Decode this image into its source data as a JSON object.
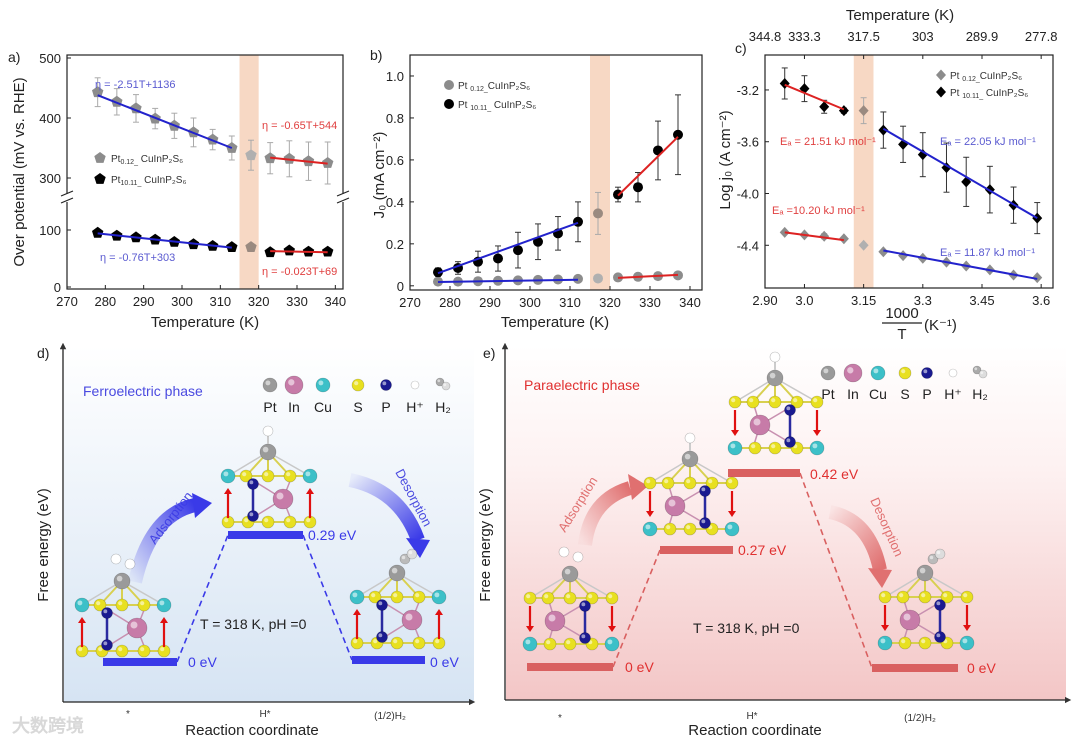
{
  "chart_data": [
    {
      "panel": "a)",
      "type": "scatter",
      "xlabel": "Temperature (K)",
      "ylabel": "Over potential (mV vs. RHE)",
      "xlim": [
        270,
        342
      ],
      "x_ticks": [
        270,
        280,
        290,
        300,
        310,
        320,
        330,
        340
      ],
      "y_ticks": [
        0,
        100,
        300,
        400,
        500
      ],
      "y_break": [
        160,
        280
      ],
      "transition_band": [
        315,
        320
      ],
      "series": [
        {
          "name": "Pt0.12_CuInP2S6",
          "legend": {
            "a": "Pt",
            "sub": "0.12_",
            "b": " CuInP₂S₆"
          },
          "marker": "pentagon",
          "color": "#8c8c8c",
          "x": [
            278,
            283,
            288,
            293,
            298,
            303,
            308,
            313,
            318,
            323,
            328,
            333,
            338
          ],
          "y": [
            443,
            427,
            416,
            399,
            387,
            376,
            364,
            350,
            338,
            333,
            332,
            328,
            325
          ],
          "err": [
            24,
            22,
            23,
            17,
            21,
            24,
            17,
            20,
            25,
            26,
            30,
            32,
            35
          ]
        },
        {
          "name": "Pt10.11_CuInP2S6",
          "legend": {
            "a": "Pt",
            "sub": "10.11_",
            "b": " CuInP₂S₆"
          },
          "marker": "pentagon",
          "color": "#000000",
          "x": [
            278,
            283,
            288,
            293,
            298,
            303,
            308,
            313,
            318,
            323,
            328,
            333,
            338
          ],
          "y": [
            95,
            90,
            87,
            83,
            79,
            75,
            72,
            70,
            70,
            61,
            64,
            62,
            62
          ],
          "err": [
            4,
            4,
            4,
            3,
            3,
            3,
            3,
            5,
            5,
            2,
            2,
            2,
            2
          ]
        }
      ],
      "fits": [
        {
          "label": "η = -2.51T+1136",
          "x": [
            278,
            313
          ],
          "y": [
            438,
            350
          ],
          "color": "#2222cc"
        },
        {
          "label": "η = -0.65T+544",
          "x": [
            323,
            338
          ],
          "y": [
            334,
            324
          ],
          "color": "#dd2222"
        },
        {
          "label": "η = -0.76T+303",
          "x": [
            278,
            313
          ],
          "y": [
            94,
            69
          ],
          "color": "#2222cc"
        },
        {
          "label": "η = -0.023T+69",
          "x": [
            323,
            338
          ],
          "y": [
            63,
            61
          ],
          "color": "#dd2222"
        }
      ]
    },
    {
      "panel": "b)",
      "type": "scatter",
      "xlabel": "Temperature (K)",
      "ylabel": "J₀ (mA cm⁻²)",
      "xlim": [
        270,
        343
      ],
      "ylim": [
        -0.02,
        1.1
      ],
      "x_ticks": [
        270,
        280,
        290,
        300,
        310,
        320,
        330,
        340
      ],
      "y_ticks": [
        0,
        0.2,
        0.4,
        0.6,
        0.8,
        1.0
      ],
      "y_tick_labels": [
        "0",
        "0.2",
        "0.4",
        "0.6",
        "0.8",
        "1.0"
      ],
      "transition_band": [
        315,
        320
      ],
      "series": [
        {
          "name": "Pt0.12_CuInP2S6",
          "legend": {
            "a": "Pt ",
            "sub": "0.12_",
            "b": "CuInP₂S₆"
          },
          "marker": "circle",
          "color": "#8c8c8c",
          "x": [
            277,
            282,
            287,
            292,
            297,
            302,
            307,
            312,
            317,
            322,
            327,
            332,
            337
          ],
          "y": [
            0.02,
            0.02,
            0.022,
            0.024,
            0.026,
            0.028,
            0.03,
            0.033,
            0.035,
            0.04,
            0.043,
            0.046,
            0.05
          ],
          "err": [
            0,
            0,
            0,
            0,
            0,
            0,
            0,
            0,
            0,
            0,
            0,
            0,
            0
          ]
        },
        {
          "name": "Pt10.11_CuInP2S6",
          "legend": {
            "a": "Pt ",
            "sub": "10.11_",
            "b": " CuInP₂S₆"
          },
          "marker": "circle",
          "color": "#000000",
          "x": [
            277,
            282,
            287,
            292,
            297,
            302,
            307,
            312,
            317,
            322,
            327,
            332,
            337
          ],
          "y": [
            0.065,
            0.085,
            0.115,
            0.13,
            0.17,
            0.21,
            0.25,
            0.305,
            0.345,
            0.435,
            0.47,
            0.645,
            0.72
          ],
          "err": [
            0.02,
            0.03,
            0.05,
            0.06,
            0.085,
            0.085,
            0.08,
            0.095,
            0.1,
            0.035,
            0.07,
            0.14,
            0.19
          ]
        }
      ],
      "fits": [
        {
          "label": "",
          "x": [
            277,
            312
          ],
          "y": [
            0.06,
            0.3
          ],
          "color": "#2222cc"
        },
        {
          "label": "",
          "x": [
            322,
            337
          ],
          "y": [
            0.43,
            0.71
          ],
          "color": "#dd2222"
        },
        {
          "label": "",
          "x": [
            277,
            312
          ],
          "y": [
            0.018,
            0.029
          ],
          "color": "#2222cc"
        },
        {
          "label": "",
          "x": [
            322,
            337
          ],
          "y": [
            0.038,
            0.052
          ],
          "color": "#dd2222"
        }
      ]
    },
    {
      "panel": "c)",
      "type": "scatter",
      "xlabel_num": "1000",
      "xlabel_den": "T",
      "xlabel_unit": "(K⁻¹)",
      "ylabel": "Log j₀ (A cm⁻²)",
      "top_xlabel": "Temperature (K)",
      "xlim": [
        2.9,
        3.63
      ],
      "ylim": [
        -4.73,
        -2.93
      ],
      "x_ticks": [
        2.9,
        3.0,
        3.15,
        3.3,
        3.45,
        3.6
      ],
      "x_tick_labels": [
        "2.90",
        "3.0",
        "3.15",
        "3.3",
        "3.45",
        "3.6"
      ],
      "top_x_tick_labels": [
        "344.8",
        "333.3",
        "317.5",
        "303",
        "289.9",
        "277.8"
      ],
      "y_ticks": [
        -3.2,
        -3.6,
        -4.0,
        -4.4
      ],
      "y_tick_labels": [
        "-3.2",
        "-3.6",
        "-4.0",
        "-4.4"
      ],
      "transition_band": [
        3.125,
        3.175
      ],
      "series": [
        {
          "name": "Pt0.12_CuInP2S6",
          "legend": {
            "a": "Pt ",
            "sub": "0.12_",
            "b": "CuInP₂S₆"
          },
          "marker": "diamond",
          "color": "#8c8c8c",
          "x": [
            2.95,
            3.0,
            3.05,
            3.1,
            3.15,
            3.2,
            3.25,
            3.3,
            3.36,
            3.41,
            3.47,
            3.53,
            3.59
          ],
          "y": [
            -4.3,
            -4.32,
            -4.33,
            -4.35,
            -4.4,
            -4.45,
            -4.48,
            -4.5,
            -4.53,
            -4.56,
            -4.59,
            -4.63,
            -4.65
          ],
          "err": [
            0.01,
            0.01,
            0.02,
            0.01,
            0,
            0,
            0,
            0,
            0,
            0,
            0,
            0,
            0
          ]
        },
        {
          "name": "Pt10.11_CuInP2S6",
          "legend": {
            "a": "Pt ",
            "sub": "10.11_",
            "b": " CuInP₂S₆"
          },
          "marker": "diamond",
          "color": "#000000",
          "x": [
            2.95,
            3.0,
            3.05,
            3.1,
            3.15,
            3.2,
            3.25,
            3.3,
            3.36,
            3.41,
            3.47,
            3.53,
            3.59
          ],
          "y": [
            -3.15,
            -3.19,
            -3.33,
            -3.36,
            -3.36,
            -3.51,
            -3.62,
            -3.7,
            -3.8,
            -3.91,
            -3.97,
            -4.09,
            -4.19
          ],
          "err": [
            0.12,
            0.1,
            0.05,
            0.02,
            0.1,
            0.14,
            0.14,
            0.17,
            0.19,
            0.19,
            0.18,
            0.14,
            0.12
          ]
        }
      ],
      "fits": [
        {
          "label": "Eₐ = 21.51 kJ mol⁻¹",
          "x": [
            2.95,
            3.1
          ],
          "y": [
            -3.16,
            -3.35
          ],
          "color": "#dd2222"
        },
        {
          "label": "Eₐ = 22.05 kJ mol⁻¹",
          "x": [
            3.2,
            3.59
          ],
          "y": [
            -3.5,
            -4.19
          ],
          "color": "#2222cc"
        },
        {
          "label": "Eₐ =10.20 kJ mol⁻¹",
          "x": [
            2.95,
            3.1
          ],
          "y": [
            -4.3,
            -4.36
          ],
          "color": "#dd2222"
        },
        {
          "label": "Eₐ = 11.87 kJ mol⁻¹",
          "x": [
            3.2,
            3.59
          ],
          "y": [
            -4.44,
            -4.66
          ],
          "color": "#2222cc"
        }
      ]
    }
  ],
  "diagrams": {
    "d": {
      "panel": "d)",
      "phase": "Ferroelectric phase",
      "phase_color": "#4a4ae0",
      "level_color": "#3a3ae8",
      "ylabel": "Free energy (eV)",
      "xlabel": "Reaction coordinate",
      "categories": [
        "*",
        "H*",
        "(1/2)H₂"
      ],
      "levels": [
        {
          "value": 0,
          "label": "0 eV"
        },
        {
          "value": 0.29,
          "label": "0.29 eV"
        },
        {
          "value": 0,
          "label": "0 eV"
        }
      ],
      "condition": "T = 318 K, pH =0",
      "arrows": [
        "Adsorption",
        "Desorption"
      ]
    },
    "e": {
      "panel": "e)",
      "phase": "Paraelectric phase",
      "phase_color": "#e03030",
      "level_color": "#d96060",
      "ylabel": "Free energy (eV)",
      "xlabel": "Reaction coordinate",
      "categories": [
        "*",
        "H*",
        "(1/2)H₂"
      ],
      "levels": [
        {
          "value": 0,
          "label": "0 eV"
        },
        {
          "value": 0.27,
          "label": "0.27 eV"
        },
        {
          "value": 0.42,
          "label": "0.42 eV"
        },
        {
          "value": 0,
          "label": "0 eV"
        }
      ],
      "condition": "T = 318 K, pH =0",
      "arrows": [
        "Adsorption",
        "Desorption"
      ]
    },
    "atom_legend": [
      "Pt",
      "In",
      "Cu",
      "S",
      "P",
      "H⁺",
      "H₂"
    ],
    "atom_colors": {
      "Pt": "#9a9a9a",
      "In": "#c77ba8",
      "Cu": "#3cc0c8",
      "S": "#e8e020",
      "P": "#1a1a90",
      "H": "#ffffff"
    }
  },
  "watermark": "大数跨境"
}
